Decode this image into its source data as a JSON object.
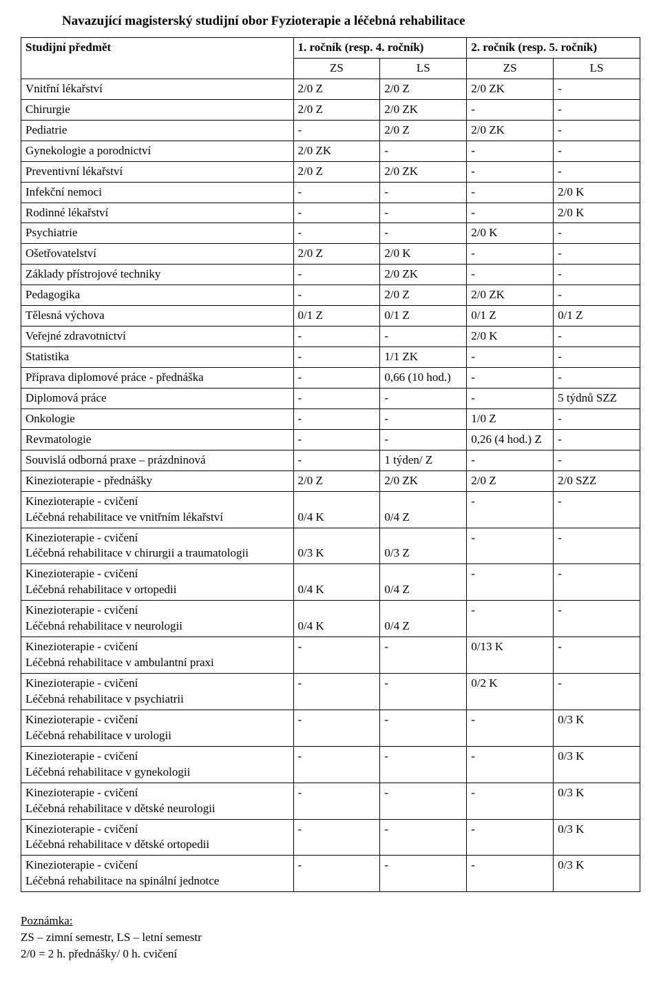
{
  "title": "Navazující magisterský studijní obor Fyzioterapie a léčebná rehabilitace",
  "header": {
    "subject": "Studijní předmět",
    "year1_span": "1. ročník (resp. 4. ročník)",
    "year2_span": "2. ročník (resp. 5. ročník)",
    "sem": {
      "zs": "ZS",
      "ls": "LS"
    }
  },
  "rows": [
    {
      "subject": "Vnitřní lékařství",
      "c": [
        "2/0 Z",
        "2/0 Z",
        "2/0 ZK",
        "-"
      ]
    },
    {
      "subject": "Chirurgie",
      "c": [
        "2/0 Z",
        "2/0 ZK",
        "-",
        "-"
      ]
    },
    {
      "subject": "Pediatrie",
      "c": [
        "-",
        "2/0 Z",
        "2/0 ZK",
        "-"
      ]
    },
    {
      "subject": "Gynekologie a porodnictví",
      "c": [
        "2/0 ZK",
        "-",
        "-",
        "-"
      ]
    },
    {
      "subject": "Preventivní lékařství",
      "c": [
        "2/0 Z",
        "2/0 ZK",
        "-",
        "-"
      ]
    },
    {
      "subject": "Infekční nemoci",
      "c": [
        "-",
        "-",
        "-",
        "2/0 K"
      ]
    },
    {
      "subject": "Rodinné lékařství",
      "c": [
        "-",
        "-",
        "-",
        "2/0 K"
      ]
    },
    {
      "subject": "Psychiatrie",
      "c": [
        "-",
        "-",
        "2/0 K",
        "-"
      ]
    },
    {
      "subject": "Ošetřovatelství",
      "c": [
        "2/0 Z",
        "2/0 K",
        "-",
        "-"
      ]
    },
    {
      "subject": "Základy přístrojové techniky",
      "c": [
        "-",
        "2/0 ZK",
        "-",
        "-"
      ]
    },
    {
      "subject": "Pedagogika",
      "c": [
        "-",
        "2/0 Z",
        "2/0 ZK",
        "-"
      ]
    },
    {
      "subject": "Tělesná výchova",
      "c": [
        "0/1 Z",
        "0/1 Z",
        "0/1 Z",
        "0/1 Z"
      ]
    },
    {
      "subject": "Veřejné zdravotnictví",
      "c": [
        "-",
        "-",
        "2/0 K",
        "-"
      ]
    },
    {
      "subject": "Statistika",
      "c": [
        "-",
        "1/1 ZK",
        "-",
        "-"
      ]
    },
    {
      "subject": "Příprava diplomové práce - přednáška",
      "c": [
        "-",
        "0,66 (10 hod.)",
        "-",
        "-"
      ]
    },
    {
      "subject": "Diplomová práce",
      "c": [
        "-",
        "-",
        "-",
        "5 týdnů  SZZ"
      ]
    },
    {
      "subject": "Onkologie",
      "c": [
        "-",
        "-",
        "1/0 Z",
        "-"
      ]
    },
    {
      "subject": "Revmatologie",
      "c": [
        "-",
        "-",
        "0,26 (4 hod.) Z",
        "-"
      ]
    },
    {
      "subject": "Souvislá odborná praxe – prázdninová",
      "c": [
        "-",
        "1 týden/ Z",
        "-",
        "-"
      ]
    },
    {
      "subject": "Kinezioterapie - přednášky",
      "c": [
        "2/0 Z",
        "2/0 ZK",
        "2/0 Z",
        "2/0 SZZ"
      ]
    }
  ],
  "tallRows": [
    {
      "lines": [
        "Kinezioterapie - cvičení",
        "Léčebná rehabilitace ve vnitřním lékařství"
      ],
      "c": [
        "0/4 K",
        "0/4 Z",
        "-",
        "-"
      ],
      "bottomAlign": [
        true,
        true,
        false,
        false
      ]
    },
    {
      "lines": [
        "Kinezioterapie - cvičení",
        "Léčebná rehabilitace v chirurgii a traumatologii"
      ],
      "c": [
        "0/3 K",
        "0/3 Z",
        "-",
        "-"
      ],
      "bottomAlign": [
        true,
        true,
        false,
        false
      ]
    },
    {
      "lines": [
        "Kinezioterapie - cvičení",
        "Léčebná rehabilitace v ortopedii"
      ],
      "c": [
        "0/4 K",
        "0/4 Z",
        "-",
        "-"
      ],
      "bottomAlign": [
        true,
        true,
        false,
        false
      ]
    },
    {
      "lines": [
        "Kinezioterapie - cvičení",
        "Léčebná rehabilitace v neurologii"
      ],
      "c": [
        "0/4 K",
        "0/4 Z",
        "-",
        "-"
      ],
      "bottomAlign": [
        true,
        true,
        false,
        false
      ]
    },
    {
      "lines": [
        "Kinezioterapie - cvičení",
        "Léčebná rehabilitace v ambulantní praxi"
      ],
      "c": [
        "-",
        "-",
        "0/13 K",
        "-"
      ],
      "bottomAlign": [
        false,
        false,
        false,
        false
      ]
    },
    {
      "lines": [
        "Kinezioterapie - cvičení",
        "Léčebná rehabilitace v psychiatrii"
      ],
      "c": [
        "-",
        "-",
        "0/2 K",
        "-"
      ],
      "bottomAlign": [
        false,
        false,
        false,
        false
      ]
    },
    {
      "lines": [
        "Kinezioterapie - cvičení",
        "Léčebná rehabilitace v urologii"
      ],
      "c": [
        "-",
        "-",
        "-",
        "0/3 K"
      ],
      "bottomAlign": [
        false,
        false,
        false,
        false
      ]
    },
    {
      "lines": [
        "Kinezioterapie - cvičení",
        "Léčebná rehabilitace v gynekologii"
      ],
      "c": [
        "-",
        "-",
        "-",
        "0/3 K"
      ],
      "bottomAlign": [
        false,
        false,
        false,
        false
      ]
    },
    {
      "lines": [
        "Kinezioterapie - cvičení",
        "Léčebná rehabilitace v dětské neurologii"
      ],
      "c": [
        "-",
        "-",
        "-",
        "0/3 K"
      ],
      "bottomAlign": [
        false,
        false,
        false,
        false
      ]
    },
    {
      "lines": [
        "Kinezioterapie - cvičení",
        "Léčebná rehabilitace v dětské ortopedii"
      ],
      "c": [
        "-",
        "-",
        "-",
        "0/3 K"
      ],
      "bottomAlign": [
        false,
        false,
        false,
        false
      ]
    },
    {
      "lines": [
        "Kinezioterapie - cvičení",
        "Léčebná rehabilitace na spinální jednotce"
      ],
      "c": [
        "-",
        "-",
        "-",
        "0/3 K"
      ],
      "bottomAlign": [
        false,
        false,
        false,
        false
      ]
    }
  ],
  "footer": {
    "noteLabel": "Poznámka:",
    "line1": "ZS – zimní semestr, LS – letní semestr",
    "line2": "2/0 = 2 h. přednášky/ 0 h. cvičení"
  }
}
